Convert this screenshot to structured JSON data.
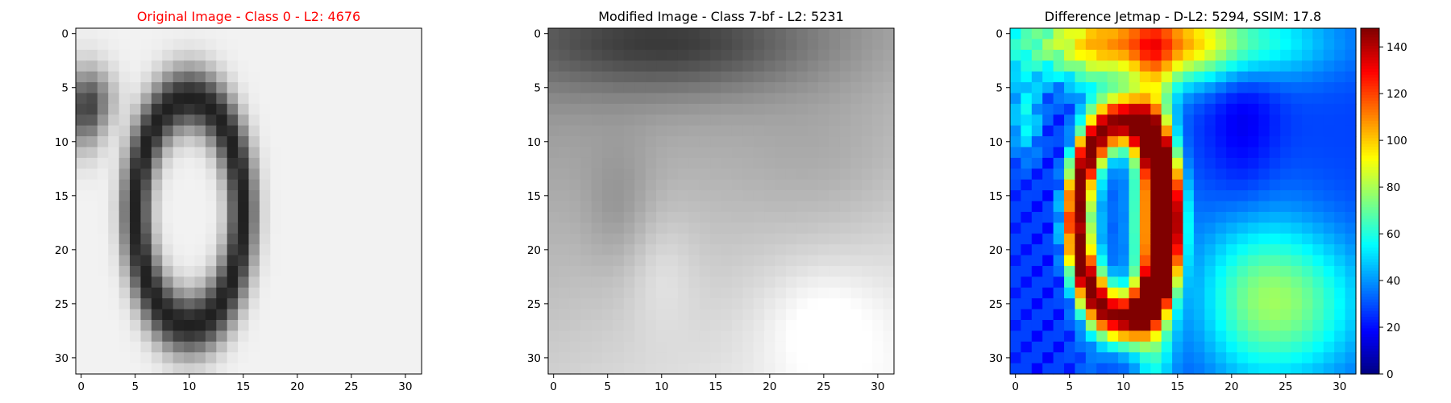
{
  "chart_data": [
    {
      "type": "heatmap",
      "title": "Original Image - Class 0 - L2: 4676",
      "title_color": "#ff0000",
      "colormap": "gray",
      "size": [
        32,
        32
      ],
      "xlim": [
        -0.5,
        31.5
      ],
      "ylim": [
        31.5,
        -0.5
      ],
      "xticks": [
        0,
        5,
        10,
        15,
        20,
        25,
        30
      ],
      "yticks": [
        0,
        5,
        10,
        15,
        20,
        25,
        30
      ],
      "content": "grayscale digit zero: dark elliptical ring centered near column 10, rows 3-30, light interior stroke, dark blotch at left edge rows 4-10, light background"
    },
    {
      "type": "heatmap",
      "title": "Modified Image - Class 7-bf - L2: 5231",
      "title_color": "#000000",
      "colormap": "gray",
      "size": [
        32,
        32
      ],
      "xlim": [
        -0.5,
        31.5
      ],
      "ylim": [
        31.5,
        -0.5
      ],
      "xticks": [
        0,
        5,
        10,
        15,
        20,
        25,
        30
      ],
      "yticks": [
        0,
        5,
        10,
        15,
        20,
        25,
        30
      ],
      "content": "blurred grayscale image: dark band along top rows, faint vertical shapes, lighter toward bottom right"
    },
    {
      "type": "heatmap",
      "title": "Difference Jetmap - D-L2: 5294, SSIM: 17.8",
      "title_color": "#000000",
      "colormap": "jet",
      "size": [
        32,
        32
      ],
      "xlim": [
        -0.5,
        31.5
      ],
      "ylim": [
        31.5,
        -0.5
      ],
      "xticks": [
        0,
        5,
        10,
        15,
        20,
        25,
        30
      ],
      "yticks": [
        0,
        5,
        10,
        15,
        20,
        25,
        30
      ],
      "colorbar": {
        "min": 0,
        "max": 148,
        "ticks": [
          0,
          20,
          40,
          60,
          80,
          100,
          120,
          140
        ]
      },
      "content": "jet colormap difference: high values (red) on the digit ring near columns 5-7 and 12-14, yellow-green band along top, blue background, green lower right"
    }
  ]
}
